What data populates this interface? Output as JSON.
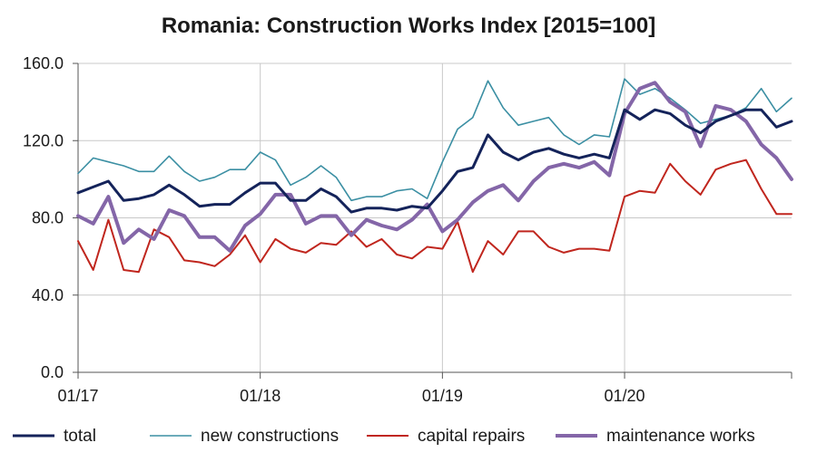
{
  "chart_data": {
    "type": "line",
    "title": "Romania: Construction Works Index [2015=100]",
    "xlabel": "",
    "ylabel": "",
    "ylim": [
      0,
      160
    ],
    "yticks": [
      "0.0",
      "40.0",
      "80.0",
      "120.0",
      "160.0"
    ],
    "xticks": [
      "01/17",
      "01/18",
      "01/19",
      "01/20"
    ],
    "grid": true,
    "legend_position": "bottom",
    "x": [
      "01/17",
      "02/17",
      "03/17",
      "04/17",
      "05/17",
      "06/17",
      "07/17",
      "08/17",
      "09/17",
      "10/17",
      "11/17",
      "12/17",
      "01/18",
      "02/18",
      "03/18",
      "04/18",
      "05/18",
      "06/18",
      "07/18",
      "08/18",
      "09/18",
      "10/18",
      "11/18",
      "12/18",
      "01/19",
      "02/19",
      "03/19",
      "04/19",
      "05/19",
      "06/19",
      "07/19",
      "08/19",
      "09/19",
      "10/19",
      "11/19",
      "12/19",
      "01/20",
      "02/20",
      "03/20",
      "04/20",
      "05/20",
      "06/20",
      "07/20",
      "08/20",
      "09/20",
      "10/20",
      "11/20",
      "12/20"
    ],
    "series": [
      {
        "name": "total",
        "color": "#14235a",
        "width": 3,
        "values": [
          93,
          96,
          99,
          89,
          90,
          92,
          97,
          92,
          86,
          87,
          87,
          93,
          98,
          98,
          89,
          89,
          95,
          91,
          83,
          85,
          85,
          84,
          86,
          85,
          94,
          104,
          106,
          123,
          114,
          110,
          114,
          116,
          113,
          111,
          113,
          111,
          136,
          131,
          136,
          134,
          128,
          124,
          130,
          133,
          136,
          136,
          127,
          130
        ]
      },
      {
        "name": "new constructions",
        "color": "#3b8fa3",
        "width": 1.6,
        "values": [
          103,
          111,
          109,
          107,
          104,
          104,
          112,
          104,
          99,
          101,
          105,
          105,
          114,
          110,
          97,
          101,
          107,
          101,
          89,
          91,
          91,
          94,
          95,
          90,
          109,
          126,
          132,
          151,
          137,
          128,
          130,
          132,
          123,
          118,
          123,
          122,
          152,
          144,
          147,
          142,
          136,
          129,
          131,
          133,
          137,
          147,
          135,
          142
        ]
      },
      {
        "name": "capital repairs",
        "color": "#c0261e",
        "width": 2,
        "values": [
          68,
          53,
          79,
          53,
          52,
          74,
          70,
          58,
          57,
          55,
          61,
          71,
          57,
          69,
          64,
          62,
          67,
          66,
          73,
          65,
          69,
          61,
          59,
          65,
          64,
          78,
          52,
          68,
          61,
          73,
          73,
          65,
          62,
          64,
          64,
          63,
          91,
          94,
          93,
          108,
          99,
          92,
          105,
          108,
          110,
          95,
          82,
          82
        ]
      },
      {
        "name": "maintenance works",
        "color": "#8466a8",
        "width": 4,
        "values": [
          81,
          77,
          91,
          67,
          74,
          69,
          84,
          81,
          70,
          70,
          63,
          76,
          82,
          92,
          92,
          77,
          81,
          81,
          71,
          79,
          76,
          74,
          79,
          87,
          73,
          79,
          88,
          94,
          97,
          89,
          99,
          106,
          108,
          106,
          109,
          102,
          134,
          147,
          150,
          140,
          135,
          117,
          138,
          136,
          130,
          118,
          111,
          100
        ]
      }
    ]
  }
}
